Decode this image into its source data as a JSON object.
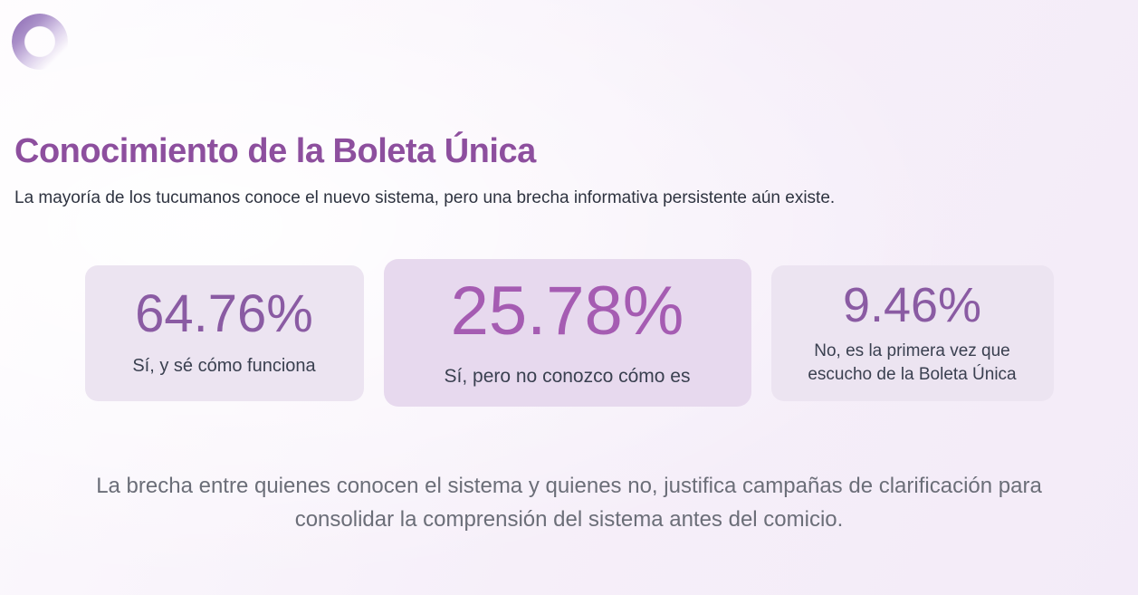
{
  "theme": {
    "title_color": "#8d4f9e",
    "number_color": "#8a5ba3",
    "number_highlight_color": "#a55cb2",
    "card_bg": "#ece4f1",
    "card_bg_highlight": "#e7d9ee",
    "subtitle_color": "#2e3340",
    "footer_color": "#6b6e78"
  },
  "header": {
    "title": "Conocimiento de la Boleta Única",
    "subtitle": "La mayoría de los tucumanos conoce el nuevo sistema, pero una brecha informativa persistente aún existe."
  },
  "stats": [
    {
      "value": "64.76%",
      "label": "Sí, y sé cómo funciona",
      "highlight": false
    },
    {
      "value": "25.78%",
      "label": "Sí, pero no conozco cómo es",
      "highlight": true
    },
    {
      "value": "9.46%",
      "label": "No, es la primera vez que escucho de la Boleta Única",
      "highlight": false
    }
  ],
  "footer": {
    "note": "La brecha entre quienes conocen el sistema y quienes no, justifica campañas de clarificación para consolidar la comprensión del sistema antes del comicio."
  }
}
